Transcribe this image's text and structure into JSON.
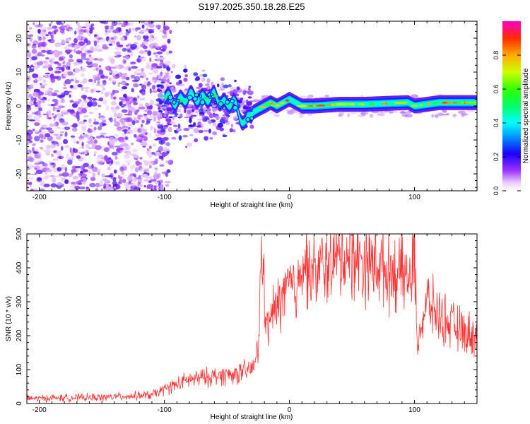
{
  "chart_data": [
    {
      "type": "heatmap",
      "title": "S197.2025.350.18.28.E25",
      "xlabel": "Height of straight line (km)",
      "ylabel": "Frequency (Hz)",
      "xlim": [
        -210,
        150
      ],
      "ylim": [
        -25,
        25
      ],
      "xticks": [
        -200,
        -100,
        0,
        100
      ],
      "yticks": [
        -20,
        -10,
        0,
        10,
        20
      ],
      "ridge": {
        "x": [
          -100,
          -90,
          -80,
          -70,
          -60,
          -50,
          -45,
          -40,
          -35,
          -30,
          -25,
          -20,
          -15,
          -10,
          -5,
          0,
          5,
          10,
          20,
          40,
          60,
          80,
          95,
          100,
          120,
          150
        ],
        "y": [
          3,
          1,
          3,
          2,
          3,
          0,
          2,
          -3,
          -5,
          -2,
          -1,
          0,
          1,
          0,
          1,
          2,
          1,
          0,
          0,
          0.5,
          0.5,
          0.8,
          1,
          0,
          1,
          1
        ]
      },
      "colorbar": {
        "label": "Normalized spectral amplitude",
        "min": 0,
        "max": 1,
        "ticks": [
          "0.0",
          "0.2",
          "0.4",
          "0.6",
          "0.8"
        ]
      }
    },
    {
      "type": "line",
      "xlabel": "Height of straight line (km)",
      "ylabel": "SNR (10 * v/v)",
      "xlim": [
        -210,
        150
      ],
      "ylim": [
        0,
        500
      ],
      "xticks": [
        -200,
        -100,
        0,
        100
      ],
      "yticks": [
        0,
        100,
        200,
        300,
        400,
        500
      ],
      "color": "#ff3333",
      "series": [
        {
          "name": "SNR",
          "x": [
            -210,
            -150,
            -110,
            -95,
            -80,
            -60,
            -40,
            -30,
            -25,
            -22,
            -18,
            -15,
            -10,
            -5,
            0,
            5,
            10,
            20,
            30,
            40,
            50,
            60,
            70,
            80,
            90,
            98,
            100,
            102,
            110,
            120,
            130,
            140,
            150
          ],
          "y": [
            15,
            18,
            25,
            50,
            70,
            80,
            90,
            100,
            150,
            480,
            200,
            260,
            280,
            320,
            350,
            320,
            430,
            380,
            410,
            430,
            440,
            420,
            410,
            390,
            380,
            360,
            470,
            180,
            300,
            260,
            230,
            210,
            200
          ]
        }
      ]
    }
  ]
}
